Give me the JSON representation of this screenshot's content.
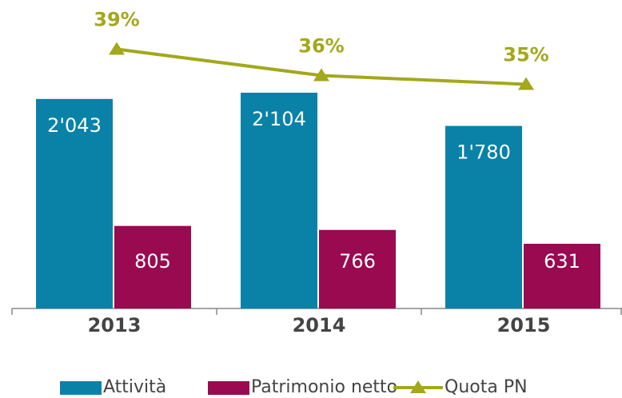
{
  "chart_data": {
    "type": "bar",
    "categories": [
      "2013",
      "2014",
      "2015"
    ],
    "ylim": [
      0,
      3000
    ],
    "y2lim": [
      9.5,
      44.5
    ],
    "series": [
      {
        "name": "Attività",
        "type": "bar",
        "color": "#0a82a8",
        "values": [
          2043,
          2104,
          1780
        ],
        "value_labels": [
          "2'043",
          "2'104",
          "1'780"
        ]
      },
      {
        "name": "Patrimonio netto",
        "type": "bar",
        "color": "#990a50",
        "values": [
          805,
          766,
          631
        ]
      },
      {
        "name": "Quota PN",
        "type": "line",
        "axis": "y2",
        "color": "#a3a81c",
        "values": [
          39,
          36,
          35
        ],
        "value_labels": [
          "39%",
          "36%",
          "35%"
        ]
      }
    ]
  }
}
